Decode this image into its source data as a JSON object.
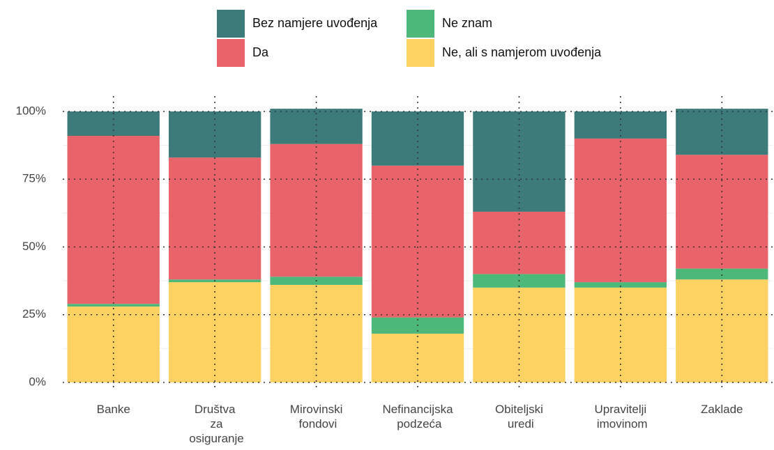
{
  "chart_data": {
    "type": "stacked_bar",
    "categories": [
      "Banke",
      "Društva za osiguranje",
      "Mirovinski fondovi",
      "Nefinancijska podzeća",
      "Obiteljski uredi",
      "Upravitelji imovinom",
      "Zaklade"
    ],
    "series": [
      {
        "name": "Ne, ali s namjerom uvođenja",
        "color": "#fdd262",
        "values": [
          28,
          37,
          36,
          18,
          35,
          35,
          38
        ]
      },
      {
        "name": "Ne znam",
        "color": "#4db87a",
        "values": [
          1,
          1,
          3,
          6,
          5,
          2,
          4
        ]
      },
      {
        "name": "Da",
        "color": "#e8646a",
        "values": [
          62,
          45,
          49,
          56,
          23,
          53,
          42
        ]
      },
      {
        "name": "Bez namjere uvođenja",
        "color": "#3d7a7a",
        "values": [
          9,
          17,
          13,
          20,
          37,
          10,
          17
        ]
      }
    ],
    "ylim": [
      0,
      100
    ],
    "yticks": [
      {
        "value": 0,
        "label": "0%"
      },
      {
        "value": 25,
        "label": "25%"
      },
      {
        "value": 50,
        "label": "50%"
      },
      {
        "value": 75,
        "label": "75%"
      },
      {
        "value": 100,
        "label": "100%"
      }
    ],
    "grid": true
  }
}
